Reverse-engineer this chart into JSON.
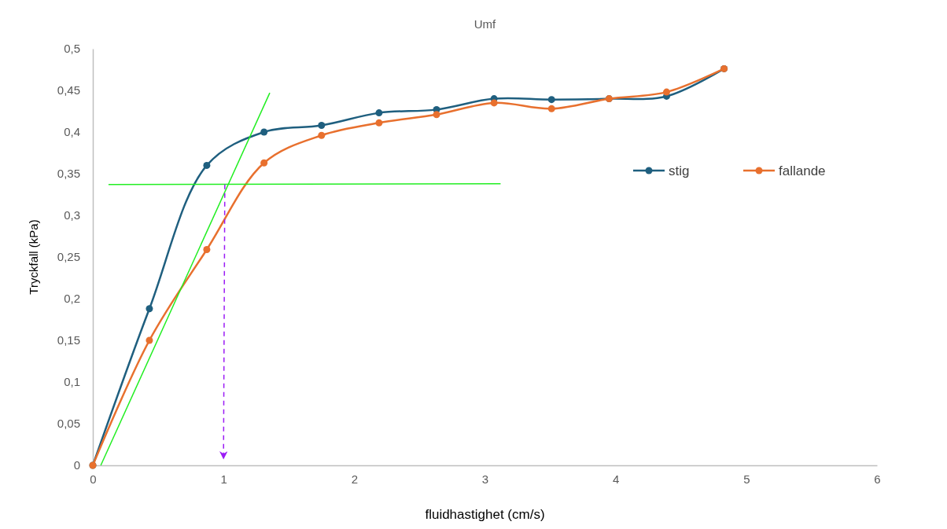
{
  "chart_data": {
    "type": "line",
    "title": "Umf",
    "xlabel": "fluidhastighet (cm/s)",
    "ylabel": "Tryckfall (kPa)",
    "xlim": [
      0,
      6
    ],
    "xticks": [
      0,
      1,
      2,
      3,
      4,
      5,
      6
    ],
    "ylim": [
      0,
      0.5
    ],
    "yticks": [
      {
        "value": 0,
        "label": "0"
      },
      {
        "value": 0.05,
        "label": "0,05"
      },
      {
        "value": 0.1,
        "label": "0,1"
      },
      {
        "value": 0.15,
        "label": "0,15"
      },
      {
        "value": 0.2,
        "label": "0,2"
      },
      {
        "value": 0.25,
        "label": "0,25"
      },
      {
        "value": 0.3,
        "label": "0,3"
      },
      {
        "value": 0.35,
        "label": "0,35"
      },
      {
        "value": 0.4,
        "label": "0,4"
      },
      {
        "value": 0.45,
        "label": "0,45"
      },
      {
        "value": 0.5,
        "label": "0,5"
      }
    ],
    "x": [
      0,
      0.433,
      0.872,
      1.31,
      1.75,
      2.19,
      2.63,
      3.07,
      3.51,
      3.95,
      4.39,
      4.83
    ],
    "grid": false,
    "legend": "right",
    "marker": "circle",
    "line_style": "solid",
    "series": [
      {
        "name": "stig",
        "color": "#1f5f7f",
        "values": [
          0,
          0.188,
          0.36,
          0.4,
          0.408,
          0.423,
          0.427,
          0.44,
          0.439,
          0.44,
          0.443,
          0.476
        ]
      },
      {
        "name": "fallande",
        "color": "#e8702e",
        "values": [
          0,
          0.15,
          0.259,
          0.363,
          0.396,
          0.411,
          0.421,
          0.435,
          0.428,
          0.44,
          0.448,
          0.476
        ]
      },
      {
        "color": "#22ee22",
        "x": [
          0.061,
          1.354
        ],
        "values": [
          0,
          0.447
        ],
        "marker": "none"
      },
      {
        "color": "#22ee22",
        "x": [
          0.12,
          3.12
        ],
        "values": [
          0.337,
          0.338
        ],
        "marker": "none"
      },
      {
        "color": "#9b1cf5",
        "x": [
          1.01,
          1.0
        ],
        "values": [
          0.337,
          0.008
        ],
        "marker": "none",
        "line_style": "dashed"
      }
    ]
  }
}
